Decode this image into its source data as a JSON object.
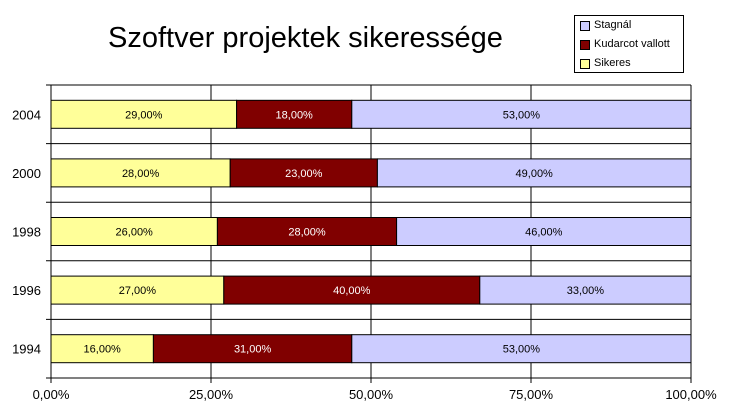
{
  "chart_data": {
    "type": "bar",
    "orientation": "horizontal",
    "stacked": "percent",
    "title": "Szoftver projektek sikeressége",
    "categories": [
      "1994",
      "1996",
      "1998",
      "2000",
      "2004"
    ],
    "series": [
      {
        "name": "Sikeres",
        "color": "#ffff99",
        "values": [
          16,
          27,
          26,
          28,
          29
        ],
        "labels": [
          "16,00%",
          "27,00%",
          "26,00%",
          "28,00%",
          "29,00%"
        ]
      },
      {
        "name": "Kudarcot vallott",
        "color": "#800000",
        "values": [
          31,
          40,
          28,
          23,
          18
        ],
        "labels": [
          "31,00%",
          "40,00%",
          "28,00%",
          "23,00%",
          "18,00%"
        ]
      },
      {
        "name": "Stagnál",
        "color": "#ccccff",
        "values": [
          53,
          33,
          46,
          49,
          53
        ],
        "labels": [
          "53,00%",
          "33,00%",
          "46,00%",
          "49,00%",
          "53,00%"
        ]
      }
    ],
    "xlim": [
      0,
      100
    ],
    "xticks": [
      "0,00%",
      "25,00%",
      "50,00%",
      "75,00%",
      "100,00%"
    ],
    "grid": true,
    "legend_position": "top-right",
    "legend_order": [
      "Stagnál",
      "Kudarcot vallott",
      "Sikeres"
    ]
  }
}
